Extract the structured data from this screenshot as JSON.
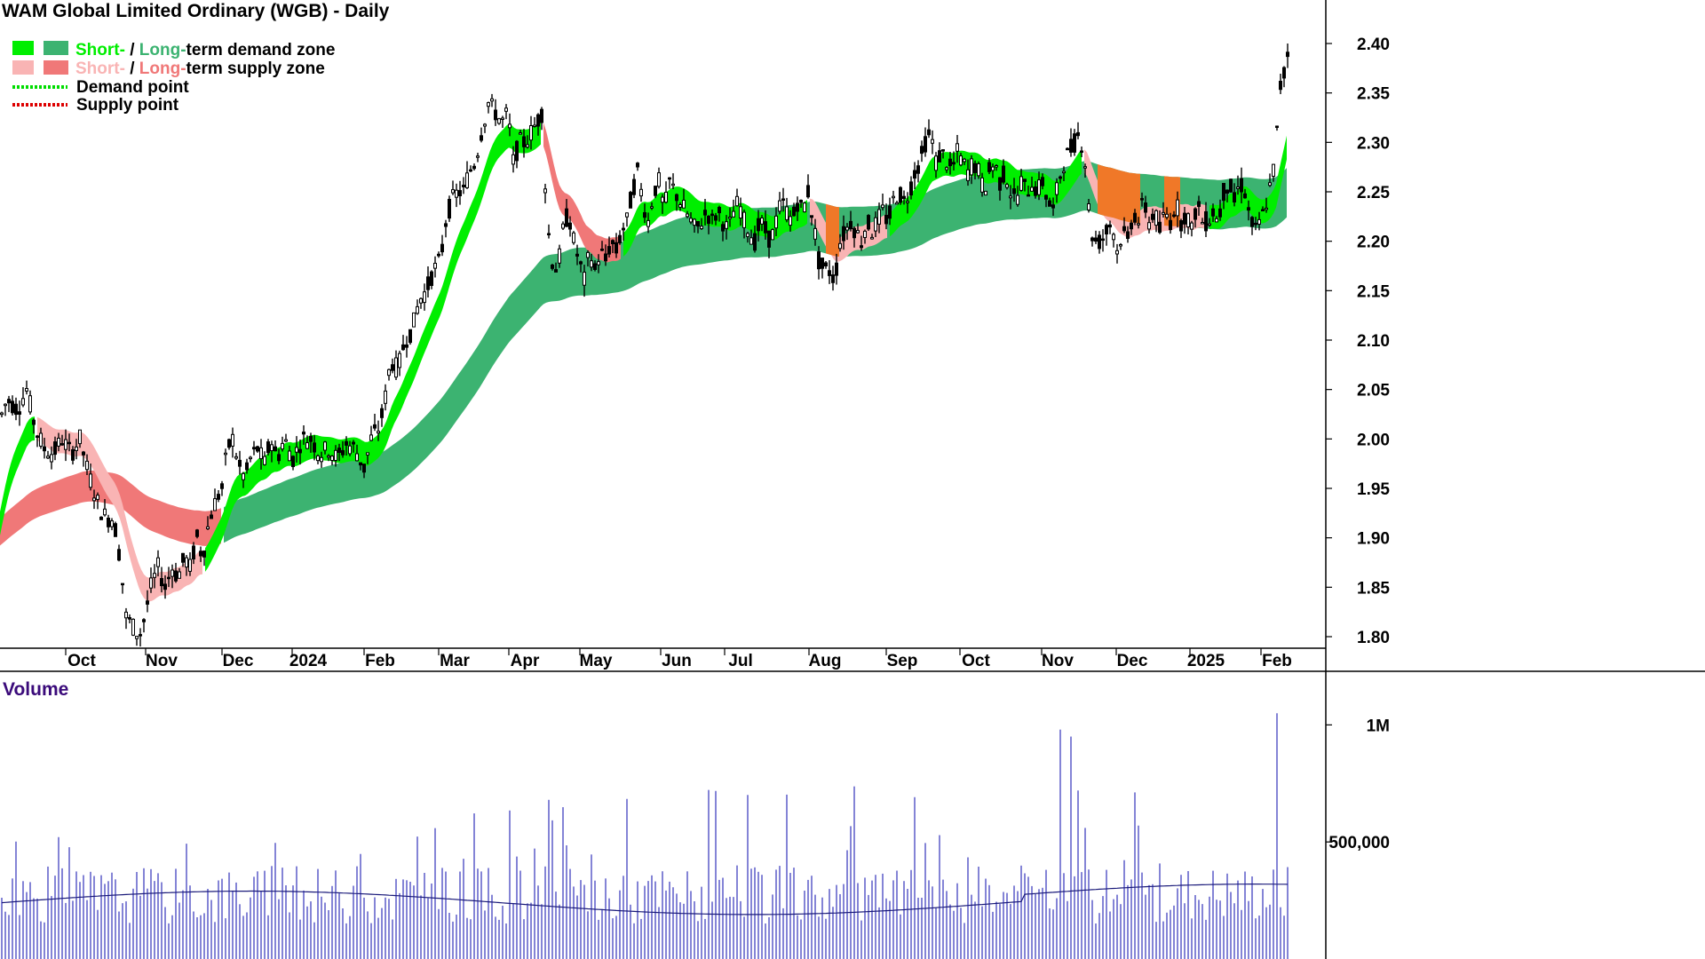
{
  "chart_data": {
    "type": "candlestick",
    "title": "WAM Global Limited Ordinary (WGB) - Daily",
    "legend": {
      "position": "top-left",
      "demand_zone": {
        "short_label": "Short-",
        "sep": " / ",
        "long_label": "Long-",
        "rest": "term demand zone",
        "short_color": "#00ee00",
        "long_color": "#3cb371"
      },
      "supply_zone": {
        "short_label": "Short-",
        "sep": " / ",
        "long_label": "Long-",
        "rest": "term supply zone",
        "short_color": "#f9b4b4",
        "long_color": "#f07878"
      },
      "demand_point": {
        "label": "Demand point",
        "color": "#00dd00"
      },
      "supply_point": {
        "label": "Supply point",
        "color": "#dd0000"
      }
    },
    "price_axis": {
      "ticks": [
        "2.40",
        "2.35",
        "2.30",
        "2.25",
        "2.20",
        "2.15",
        "2.10",
        "2.05",
        "2.00",
        "1.95",
        "1.90",
        "1.85",
        "1.80"
      ],
      "min": 1.775,
      "max": 2.45
    },
    "x_ticks": [
      {
        "label": "Oct",
        "x": 92
      },
      {
        "label": "Nov",
        "x": 182
      },
      {
        "label": "Dec",
        "x": 268
      },
      {
        "label": "2024",
        "x": 347
      },
      {
        "label": "Feb",
        "x": 428
      },
      {
        "label": "Mar",
        "x": 512
      },
      {
        "label": "Apr",
        "x": 591
      },
      {
        "label": "May",
        "x": 671
      },
      {
        "label": "Jun",
        "x": 762
      },
      {
        "label": "Jul",
        "x": 834
      },
      {
        "label": "Aug",
        "x": 929
      },
      {
        "label": "Sep",
        "x": 1016
      },
      {
        "label": "Oct",
        "x": 1099
      },
      {
        "label": "Nov",
        "x": 1191
      },
      {
        "label": "Dec",
        "x": 1275
      },
      {
        "label": "2025",
        "x": 1358
      },
      {
        "label": "Feb",
        "x": 1438
      }
    ],
    "price_path": [
      [
        0,
        2.02
      ],
      [
        8,
        2.04
      ],
      [
        20,
        2.03
      ],
      [
        30,
        2.05
      ],
      [
        40,
        2.01
      ],
      [
        50,
        1.99
      ],
      [
        60,
        1.985
      ],
      [
        70,
        2.0
      ],
      [
        80,
        1.985
      ],
      [
        90,
        2.0
      ],
      [
        98,
        1.97
      ],
      [
        105,
        1.95
      ],
      [
        112,
        1.93
      ],
      [
        120,
        1.92
      ],
      [
        128,
        1.92
      ],
      [
        135,
        1.88
      ],
      [
        142,
        1.82
      ],
      [
        150,
        1.81
      ],
      [
        157,
        1.8
      ],
      [
        163,
        1.82
      ],
      [
        170,
        1.85
      ],
      [
        178,
        1.87
      ],
      [
        186,
        1.85
      ],
      [
        194,
        1.87
      ],
      [
        200,
        1.86
      ],
      [
        208,
        1.88
      ],
      [
        214,
        1.87
      ],
      [
        222,
        1.9
      ],
      [
        228,
        1.88
      ],
      [
        236,
        1.92
      ],
      [
        244,
        1.94
      ],
      [
        250,
        1.95
      ],
      [
        256,
        1.99
      ],
      [
        262,
        2.0
      ],
      [
        270,
        1.97
      ],
      [
        276,
        1.96
      ],
      [
        282,
        1.98
      ],
      [
        290,
        1.99
      ],
      [
        298,
        1.975
      ],
      [
        305,
        2.0
      ],
      [
        312,
        1.98
      ],
      [
        320,
        2.0
      ],
      [
        330,
        1.98
      ],
      [
        340,
        2.0
      ],
      [
        350,
        2.0
      ],
      [
        360,
        1.985
      ],
      [
        370,
        1.99
      ],
      [
        380,
        1.98
      ],
      [
        390,
        1.995
      ],
      [
        400,
        1.99
      ],
      [
        410,
        1.97
      ],
      [
        418,
        2.0
      ],
      [
        426,
        2.01
      ],
      [
        432,
        2.03
      ],
      [
        440,
        2.08
      ],
      [
        448,
        2.07
      ],
      [
        456,
        2.1
      ],
      [
        464,
        2.11
      ],
      [
        472,
        2.14
      ],
      [
        480,
        2.15
      ],
      [
        488,
        2.17
      ],
      [
        496,
        2.18
      ],
      [
        502,
        2.22
      ],
      [
        508,
        2.24
      ],
      [
        516,
        2.25
      ],
      [
        522,
        2.25
      ],
      [
        528,
        2.27
      ],
      [
        535,
        2.28
      ],
      [
        542,
        2.31
      ],
      [
        550,
        2.34
      ],
      [
        558,
        2.33
      ],
      [
        565,
        2.32
      ],
      [
        572,
        2.33
      ],
      [
        578,
        2.28
      ],
      [
        585,
        2.3
      ],
      [
        592,
        2.3
      ],
      [
        598,
        2.31
      ],
      [
        604,
        2.32
      ],
      [
        610,
        2.33
      ],
      [
        616,
        2.22
      ],
      [
        622,
        2.18
      ],
      [
        628,
        2.17
      ],
      [
        634,
        2.21
      ],
      [
        640,
        2.23
      ],
      [
        646,
        2.2
      ],
      [
        652,
        2.18
      ],
      [
        658,
        2.16
      ],
      [
        664,
        2.19
      ],
      [
        670,
        2.17
      ],
      [
        676,
        2.19
      ],
      [
        682,
        2.18
      ],
      [
        688,
        2.2
      ],
      [
        694,
        2.19
      ],
      [
        700,
        2.21
      ],
      [
        706,
        2.22
      ],
      [
        712,
        2.25
      ],
      [
        718,
        2.27
      ],
      [
        724,
        2.24
      ],
      [
        730,
        2.22
      ],
      [
        736,
        2.25
      ],
      [
        742,
        2.26
      ],
      [
        748,
        2.23
      ],
      [
        754,
        2.26
      ],
      [
        760,
        2.25
      ],
      [
        766,
        2.24
      ],
      [
        772,
        2.23
      ],
      [
        778,
        2.22
      ],
      [
        784,
        2.21
      ],
      [
        790,
        2.22
      ],
      [
        796,
        2.23
      ],
      [
        802,
        2.22
      ],
      [
        808,
        2.23
      ],
      [
        814,
        2.22
      ],
      [
        820,
        2.21
      ],
      [
        826,
        2.23
      ],
      [
        832,
        2.24
      ],
      [
        838,
        2.22
      ],
      [
        844,
        2.21
      ],
      [
        850,
        2.2
      ],
      [
        856,
        2.22
      ],
      [
        862,
        2.21
      ],
      [
        868,
        2.2
      ],
      [
        874,
        2.22
      ],
      [
        880,
        2.24
      ],
      [
        886,
        2.23
      ],
      [
        892,
        2.22
      ],
      [
        898,
        2.24
      ],
      [
        904,
        2.23
      ],
      [
        910,
        2.25
      ],
      [
        916,
        2.22
      ],
      [
        922,
        2.18
      ],
      [
        928,
        2.17
      ],
      [
        934,
        2.17
      ],
      [
        940,
        2.16
      ],
      [
        946,
        2.2
      ],
      [
        952,
        2.21
      ],
      [
        958,
        2.22
      ],
      [
        964,
        2.21
      ],
      [
        970,
        2.2
      ],
      [
        976,
        2.22
      ],
      [
        982,
        2.21
      ],
      [
        988,
        2.22
      ],
      [
        994,
        2.23
      ],
      [
        1000,
        2.22
      ],
      [
        1006,
        2.24
      ],
      [
        1012,
        2.25
      ],
      [
        1018,
        2.24
      ],
      [
        1024,
        2.25
      ],
      [
        1030,
        2.27
      ],
      [
        1036,
        2.28
      ],
      [
        1042,
        2.3
      ],
      [
        1048,
        2.31
      ],
      [
        1054,
        2.28
      ],
      [
        1060,
        2.29
      ],
      [
        1066,
        2.28
      ],
      [
        1072,
        2.27
      ],
      [
        1078,
        2.29
      ],
      [
        1084,
        2.28
      ],
      [
        1090,
        2.27
      ],
      [
        1096,
        2.28
      ],
      [
        1102,
        2.27
      ],
      [
        1108,
        2.25
      ],
      [
        1114,
        2.27
      ],
      [
        1120,
        2.28
      ],
      [
        1126,
        2.26
      ],
      [
        1132,
        2.27
      ],
      [
        1138,
        2.25
      ],
      [
        1144,
        2.24
      ],
      [
        1150,
        2.26
      ],
      [
        1156,
        2.25
      ],
      [
        1162,
        2.26
      ],
      [
        1168,
        2.25
      ],
      [
        1174,
        2.26
      ],
      [
        1180,
        2.24
      ],
      [
        1186,
        2.23
      ],
      [
        1192,
        2.26
      ],
      [
        1198,
        2.28
      ],
      [
        1204,
        2.29
      ],
      [
        1210,
        2.3
      ],
      [
        1216,
        2.31
      ],
      [
        1222,
        2.28
      ],
      [
        1228,
        2.21
      ],
      [
        1234,
        2.2
      ],
      [
        1240,
        2.2
      ],
      [
        1246,
        2.21
      ],
      [
        1252,
        2.22
      ],
      [
        1258,
        2.19
      ],
      [
        1264,
        2.21
      ],
      [
        1270,
        2.2
      ],
      [
        1276,
        2.23
      ],
      [
        1282,
        2.22
      ],
      [
        1288,
        2.24
      ],
      [
        1294,
        2.22
      ],
      [
        1300,
        2.23
      ],
      [
        1306,
        2.21
      ],
      [
        1312,
        2.23
      ],
      [
        1318,
        2.22
      ],
      [
        1324,
        2.24
      ],
      [
        1330,
        2.22
      ],
      [
        1336,
        2.23
      ],
      [
        1342,
        2.21
      ],
      [
        1348,
        2.24
      ],
      [
        1354,
        2.22
      ],
      [
        1360,
        2.22
      ],
      [
        1366,
        2.23
      ],
      [
        1372,
        2.22
      ],
      [
        1378,
        2.25
      ],
      [
        1384,
        2.26
      ],
      [
        1390,
        2.24
      ],
      [
        1396,
        2.26
      ],
      [
        1402,
        2.25
      ],
      [
        1408,
        2.22
      ],
      [
        1414,
        2.21
      ],
      [
        1420,
        2.22
      ],
      [
        1426,
        2.24
      ],
      [
        1432,
        2.26
      ],
      [
        1437,
        2.29
      ],
      [
        1440,
        2.35
      ],
      [
        1443,
        2.36
      ],
      [
        1446,
        2.37
      ],
      [
        1450,
        2.39
      ]
    ],
    "volume_axis": {
      "ticks": [
        "1M",
        "500,000"
      ],
      "max": 1100000
    },
    "volume_title": "Volume"
  }
}
